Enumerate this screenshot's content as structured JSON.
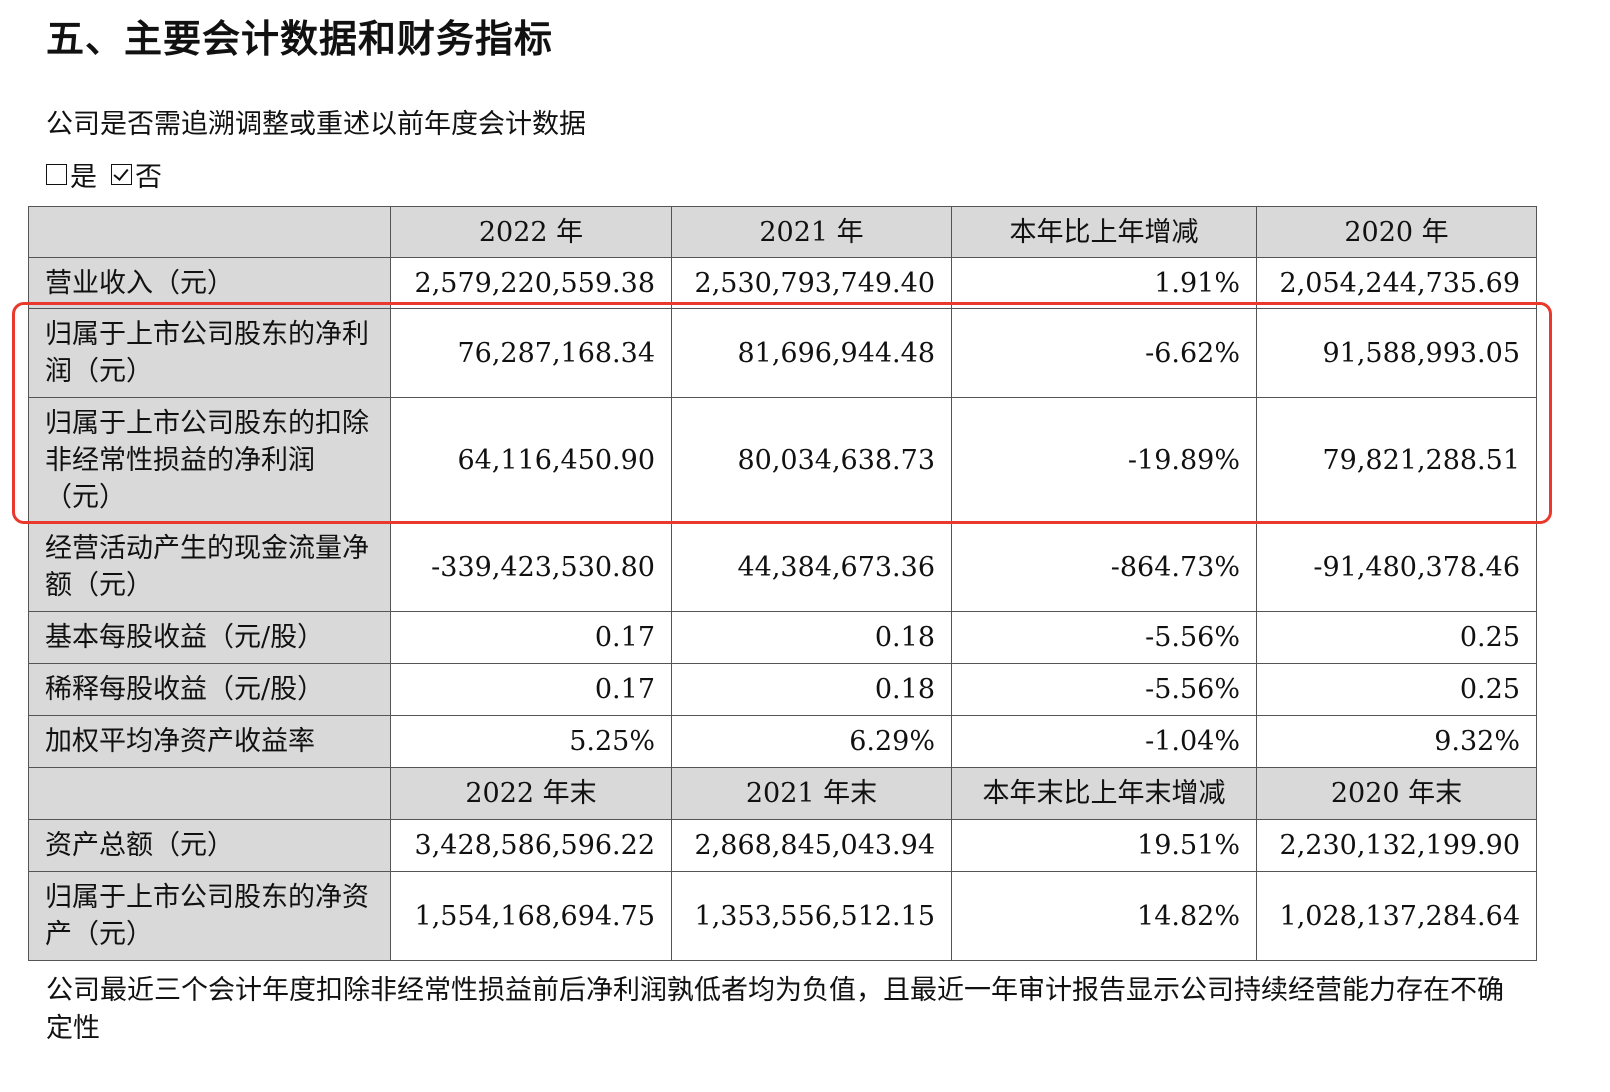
{
  "section_title": "五、主要会计数据和财务指标",
  "question": "公司是否需追溯调整或重述以前年度会计数据",
  "options": [
    {
      "label": "是",
      "checked": false
    },
    {
      "label": "否",
      "checked": true
    }
  ],
  "table": {
    "header1": [
      "",
      "2022 年",
      "2021 年",
      "本年比上年增减",
      "2020 年"
    ],
    "rows1": [
      {
        "label": "营业收入（元）",
        "values": [
          "2,579,220,559.38",
          "2,530,793,749.40",
          "1.91%",
          "2,054,244,735.69"
        ]
      },
      {
        "label": "归属于上市公司股东的净利润（元）",
        "values": [
          "76,287,168.34",
          "81,696,944.48",
          "-6.62%",
          "91,588,993.05"
        ]
      },
      {
        "label": "归属于上市公司股东的扣除非经常性损益的净利润（元）",
        "values": [
          "64,116,450.90",
          "80,034,638.73",
          "-19.89%",
          "79,821,288.51"
        ]
      },
      {
        "label": "经营活动产生的现金流量净额（元）",
        "values": [
          "-339,423,530.80",
          "44,384,673.36",
          "-864.73%",
          "-91,480,378.46"
        ]
      },
      {
        "label": "基本每股收益（元/股）",
        "values": [
          "0.17",
          "0.18",
          "-5.56%",
          "0.25"
        ]
      },
      {
        "label": "稀释每股收益（元/股）",
        "values": [
          "0.17",
          "0.18",
          "-5.56%",
          "0.25"
        ]
      },
      {
        "label": "加权平均净资产收益率",
        "values": [
          "5.25%",
          "6.29%",
          "-1.04%",
          "9.32%"
        ]
      }
    ],
    "header2": [
      "",
      "2022 年末",
      "2021 年末",
      "本年末比上年末增减",
      "2020 年末"
    ],
    "rows2": [
      {
        "label": "资产总额（元）",
        "values": [
          "3,428,586,596.22",
          "2,868,845,043.94",
          "19.51%",
          "2,230,132,199.90"
        ]
      },
      {
        "label": "归属于上市公司股东的净资产（元）",
        "values": [
          "1,554,168,694.75",
          "1,353,556,512.15",
          "14.82%",
          "1,028,137,284.64"
        ]
      }
    ]
  },
  "highlight_color": "#e8392c",
  "header_bg": "#d9d9d9",
  "footnote": "公司最近三个会计年度扣除非经常性损益前后净利润孰低者均为负值，且最近一年审计报告显示公司持续经营能力存在不确定性"
}
